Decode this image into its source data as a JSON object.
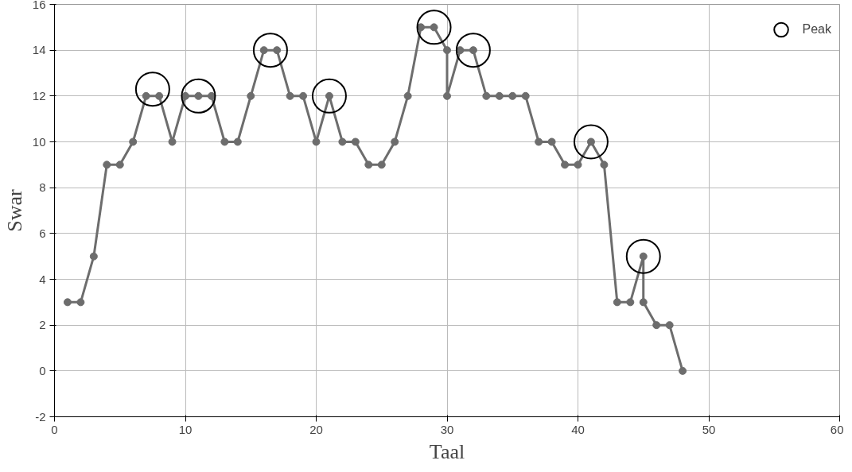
{
  "chart_data": {
    "type": "line",
    "xlabel": "Taal",
    "ylabel": "Swar",
    "xlim": [
      0,
      60
    ],
    "ylim": [
      -2,
      16
    ],
    "xticks": [
      0,
      10,
      20,
      30,
      40,
      50,
      60
    ],
    "yticks": [
      -2,
      0,
      2,
      4,
      6,
      8,
      10,
      12,
      14,
      16
    ],
    "grid": true,
    "legend": "top right",
    "marker": "circle",
    "line_style": "solid",
    "series": [
      {
        "color": "#6d6d6d",
        "x": [
          1,
          2,
          3,
          4,
          5,
          6,
          7,
          8,
          9,
          10,
          11,
          12,
          13,
          14,
          15,
          16,
          17,
          18,
          19,
          20,
          21,
          22,
          23,
          24,
          25,
          26,
          27,
          28,
          29,
          30,
          30,
          31,
          32,
          33,
          34,
          35,
          36,
          37,
          38,
          39,
          40,
          41,
          42,
          43,
          44,
          45,
          45,
          46,
          47,
          48
        ],
        "values": [
          3,
          3,
          5,
          9,
          9,
          10,
          12,
          12,
          10,
          12,
          12,
          12,
          10,
          10,
          12,
          14,
          14,
          12,
          12,
          10,
          12,
          10,
          10,
          9,
          9,
          10,
          12,
          15,
          15,
          14,
          12,
          14,
          14,
          12,
          12,
          12,
          12,
          10,
          10,
          9,
          9,
          10,
          9,
          3,
          3,
          5,
          3,
          2,
          2,
          0
        ]
      },
      {
        "name": "Peak",
        "type": "scatter",
        "color": "#000000",
        "x": [
          7.5,
          11,
          16.5,
          21,
          29,
          32,
          41,
          45
        ],
        "values": [
          12.3,
          12,
          14,
          12,
          15,
          14,
          10,
          5
        ]
      }
    ]
  }
}
